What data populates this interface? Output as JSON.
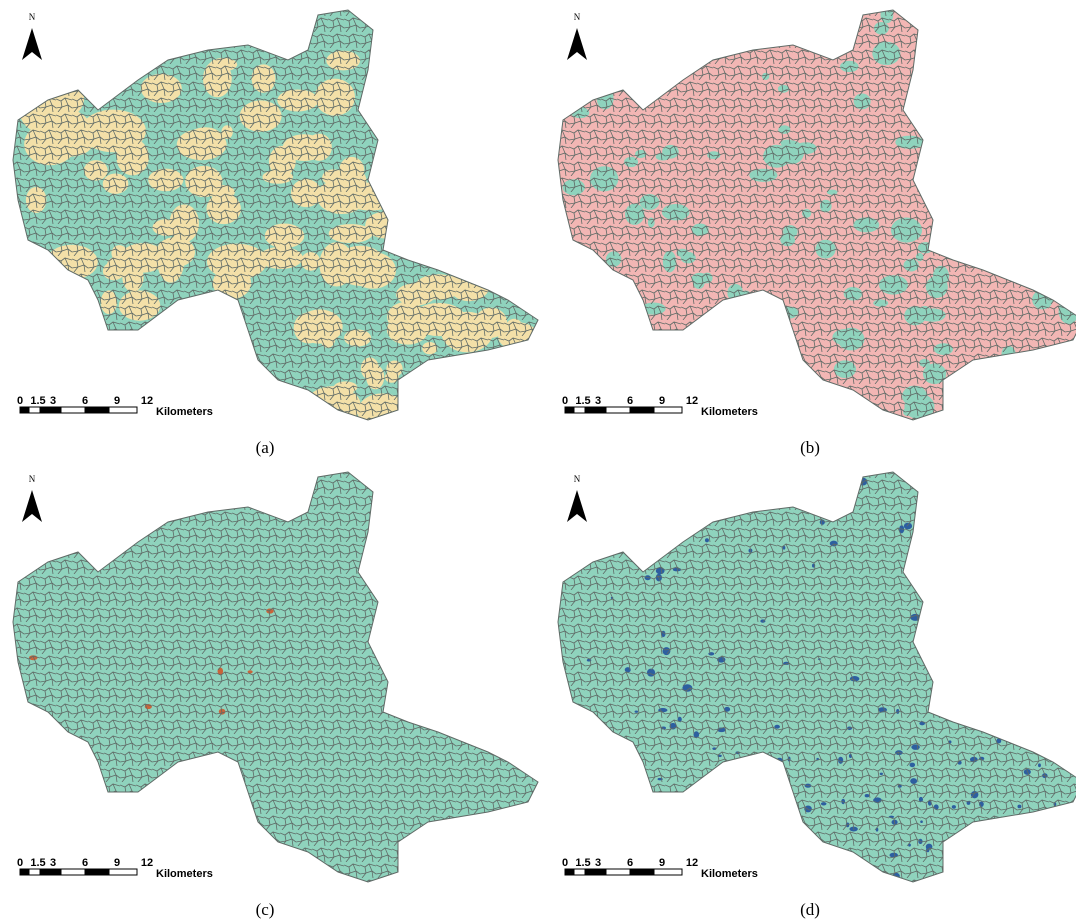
{
  "panels": [
    {
      "caption": "(a)",
      "north": "N",
      "scale_labels": [
        "0",
        "1.5",
        "3",
        "6",
        "9",
        "12"
      ],
      "scale_unit": "Kilometers"
    },
    {
      "caption": "(b)",
      "north": "N",
      "scale_labels": [
        "0",
        "1.5",
        "3",
        "6",
        "9",
        "12"
      ],
      "scale_unit": "Kilometers"
    },
    {
      "caption": "(c)",
      "north": "N",
      "scale_labels": [
        "0",
        "1.5",
        "3",
        "6",
        "9",
        "12"
      ],
      "scale_unit": "Kilometers"
    },
    {
      "caption": "(d)",
      "north": "N",
      "scale_labels": [
        "0",
        "1.5",
        "3",
        "6",
        "9",
        "12"
      ],
      "scale_unit": "Kilometers"
    }
  ]
}
